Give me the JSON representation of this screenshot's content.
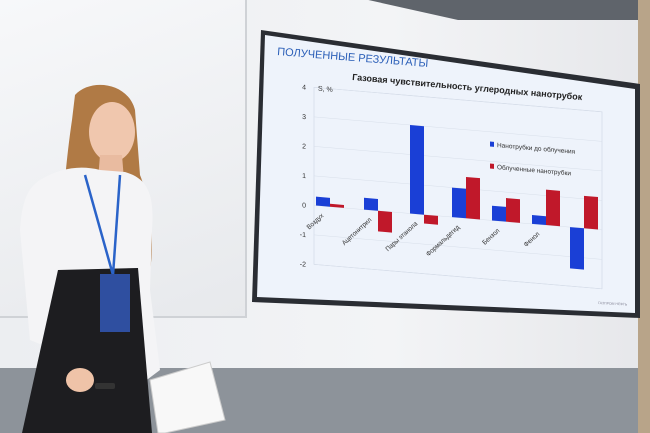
{
  "slide": {
    "heading": "ПОЛУЧЕННЫЕ РЕЗУЛЬТАТЫ",
    "footer": "ГАЗПРОМ НЕФТЬ"
  },
  "badge_text": "",
  "colors": {
    "series1": "#1a3fd6",
    "series2": "#c0182a",
    "screen_bg": "#eef3fb",
    "heading": "#2b5fb8"
  },
  "chart_data": {
    "type": "bar",
    "title": "Газовая чувствительность углеродных нанотрубок",
    "ylabel": "S, %",
    "ylim": [
      -2,
      4
    ],
    "yticks": [
      "4",
      "3",
      "2",
      "1",
      "0",
      "-1",
      "-2"
    ],
    "grid": true,
    "legend_placement": "top-right",
    "categories": [
      "Воздух",
      "Ацетонитрил",
      "Пары этанола",
      "Формальдегид",
      "Бензол",
      "Фенол",
      ""
    ],
    "series": [
      {
        "name": "Нанотрубки до облучения",
        "values": [
          0.3,
          0.4,
          3.0,
          1.0,
          0.5,
          0.3,
          -1.4
        ]
      },
      {
        "name": "Облученные нанотрубки",
        "values": [
          0.1,
          -0.7,
          -0.3,
          1.4,
          0.8,
          1.2,
          1.1
        ]
      }
    ]
  }
}
